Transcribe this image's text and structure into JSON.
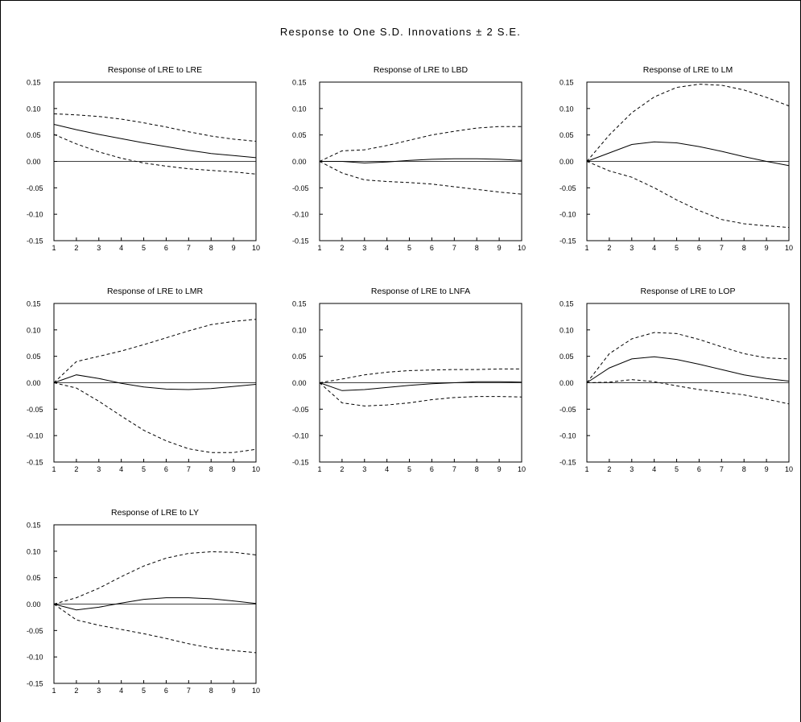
{
  "title": "Response to One S.D. Innovations ± 2 S.E.",
  "chart_data": [
    {
      "type": "line",
      "title": "Response of LRE to LRE",
      "x": [
        1,
        2,
        3,
        4,
        5,
        6,
        7,
        8,
        9,
        10
      ],
      "ylim": [
        -0.15,
        0.15
      ],
      "yticks": [
        "0.15",
        "0.10",
        "0.05",
        "0.00",
        "-0.05",
        "-0.10",
        "-0.15"
      ],
      "xticks": [
        "1",
        "2",
        "3",
        "4",
        "5",
        "6",
        "7",
        "8",
        "9",
        "10"
      ],
      "grid": false,
      "series": [
        {
          "style": "solid",
          "values": [
            0.07,
            0.06,
            0.051,
            0.043,
            0.035,
            0.028,
            0.021,
            0.015,
            0.011,
            0.007
          ]
        },
        {
          "style": "dashed",
          "values": [
            0.09,
            0.088,
            0.085,
            0.08,
            0.073,
            0.065,
            0.056,
            0.048,
            0.042,
            0.038
          ]
        },
        {
          "style": "dashed",
          "values": [
            0.051,
            0.033,
            0.018,
            0.006,
            -0.003,
            -0.009,
            -0.014,
            -0.017,
            -0.02,
            -0.024
          ]
        }
      ]
    },
    {
      "type": "line",
      "title": "Response of LRE to LBD",
      "x": [
        1,
        2,
        3,
        4,
        5,
        6,
        7,
        8,
        9,
        10
      ],
      "ylim": [
        -0.15,
        0.15
      ],
      "yticks": [
        "0.15",
        "0.10",
        "0.05",
        "0.00",
        "-0.05",
        "-0.10",
        "-0.15"
      ],
      "xticks": [
        "1",
        "2",
        "3",
        "4",
        "5",
        "6",
        "7",
        "8",
        "9",
        "10"
      ],
      "grid": false,
      "series": [
        {
          "style": "solid",
          "values": [
            0.0,
            0.0,
            -0.003,
            -0.001,
            0.002,
            0.004,
            0.005,
            0.005,
            0.004,
            0.002
          ]
        },
        {
          "style": "dashed",
          "values": [
            0.0,
            0.02,
            0.022,
            0.03,
            0.04,
            0.05,
            0.057,
            0.063,
            0.066,
            0.066
          ]
        },
        {
          "style": "dashed",
          "values": [
            0.0,
            -0.022,
            -0.035,
            -0.038,
            -0.04,
            -0.043,
            -0.048,
            -0.053,
            -0.058,
            -0.062
          ]
        }
      ]
    },
    {
      "type": "line",
      "title": "Response of LRE to LM",
      "x": [
        1,
        2,
        3,
        4,
        5,
        6,
        7,
        8,
        9,
        10
      ],
      "ylim": [
        -0.15,
        0.15
      ],
      "yticks": [
        "0.15",
        "0.10",
        "0.05",
        "0.00",
        "-0.05",
        "-0.10",
        "-0.15"
      ],
      "xticks": [
        "1",
        "2",
        "3",
        "4",
        "5",
        "6",
        "7",
        "8",
        "9",
        "10"
      ],
      "grid": false,
      "series": [
        {
          "style": "solid",
          "values": [
            0.0,
            0.016,
            0.032,
            0.037,
            0.035,
            0.028,
            0.019,
            0.009,
            0.0,
            -0.008
          ]
        },
        {
          "style": "dashed",
          "values": [
            0.0,
            0.05,
            0.092,
            0.122,
            0.14,
            0.146,
            0.144,
            0.135,
            0.121,
            0.105
          ]
        },
        {
          "style": "dashed",
          "values": [
            0.0,
            -0.018,
            -0.03,
            -0.05,
            -0.073,
            -0.093,
            -0.11,
            -0.118,
            -0.122,
            -0.125
          ]
        }
      ]
    },
    {
      "type": "line",
      "title": "Response of LRE to LMR",
      "x": [
        1,
        2,
        3,
        4,
        5,
        6,
        7,
        8,
        9,
        10
      ],
      "ylim": [
        -0.15,
        0.15
      ],
      "yticks": [
        "0.15",
        "0.10",
        "0.05",
        "0.00",
        "-0.05",
        "-0.10",
        "-0.15"
      ],
      "xticks": [
        "1",
        "2",
        "3",
        "4",
        "5",
        "6",
        "7",
        "8",
        "9",
        "10"
      ],
      "grid": false,
      "series": [
        {
          "style": "solid",
          "values": [
            0.0,
            0.015,
            0.008,
            -0.001,
            -0.008,
            -0.012,
            -0.013,
            -0.011,
            -0.007,
            -0.003
          ]
        },
        {
          "style": "dashed",
          "values": [
            0.0,
            0.04,
            0.05,
            0.06,
            0.072,
            0.085,
            0.098,
            0.11,
            0.116,
            0.12
          ]
        },
        {
          "style": "dashed",
          "values": [
            0.0,
            -0.01,
            -0.035,
            -0.063,
            -0.09,
            -0.11,
            -0.125,
            -0.132,
            -0.132,
            -0.126
          ]
        }
      ]
    },
    {
      "type": "line",
      "title": "Response of LRE to LNFA",
      "x": [
        1,
        2,
        3,
        4,
        5,
        6,
        7,
        8,
        9,
        10
      ],
      "ylim": [
        -0.15,
        0.15
      ],
      "yticks": [
        "0.15",
        "0.10",
        "0.05",
        "0.00",
        "-0.05",
        "-0.10",
        "-0.15"
      ],
      "xticks": [
        "1",
        "2",
        "3",
        "4",
        "5",
        "6",
        "7",
        "8",
        "9",
        "10"
      ],
      "grid": false,
      "series": [
        {
          "style": "solid",
          "values": [
            0.0,
            -0.015,
            -0.013,
            -0.009,
            -0.005,
            -0.002,
            0.0,
            0.002,
            0.002,
            0.001
          ]
        },
        {
          "style": "dashed",
          "values": [
            0.0,
            0.007,
            0.015,
            0.02,
            0.023,
            0.024,
            0.025,
            0.025,
            0.026,
            0.026
          ]
        },
        {
          "style": "dashed",
          "values": [
            0.0,
            -0.038,
            -0.044,
            -0.042,
            -0.038,
            -0.032,
            -0.028,
            -0.026,
            -0.026,
            -0.027
          ]
        }
      ]
    },
    {
      "type": "line",
      "title": "Response of LRE to LOP",
      "x": [
        1,
        2,
        3,
        4,
        5,
        6,
        7,
        8,
        9,
        10
      ],
      "ylim": [
        -0.15,
        0.15
      ],
      "yticks": [
        "0.15",
        "0.10",
        "0.05",
        "0.00",
        "-0.05",
        "-0.10",
        "-0.15"
      ],
      "xticks": [
        "1",
        "2",
        "3",
        "4",
        "5",
        "6",
        "7",
        "8",
        "9",
        "10"
      ],
      "grid": false,
      "series": [
        {
          "style": "solid",
          "values": [
            0.0,
            0.028,
            0.045,
            0.049,
            0.044,
            0.035,
            0.025,
            0.015,
            0.008,
            0.003
          ]
        },
        {
          "style": "dashed",
          "values": [
            0.0,
            0.055,
            0.083,
            0.095,
            0.093,
            0.082,
            0.068,
            0.055,
            0.047,
            0.045
          ]
        },
        {
          "style": "dashed",
          "values": [
            0.0,
            0.001,
            0.006,
            0.002,
            -0.006,
            -0.013,
            -0.018,
            -0.023,
            -0.031,
            -0.04
          ]
        }
      ]
    },
    {
      "type": "line",
      "title": "Response of LRE to LY",
      "x": [
        1,
        2,
        3,
        4,
        5,
        6,
        7,
        8,
        9,
        10
      ],
      "ylim": [
        -0.15,
        0.15
      ],
      "yticks": [
        "0.15",
        "0.10",
        "0.05",
        "0.00",
        "-0.05",
        "-0.10",
        "-0.15"
      ],
      "xticks": [
        "1",
        "2",
        "3",
        "4",
        "5",
        "6",
        "7",
        "8",
        "9",
        "10"
      ],
      "grid": false,
      "series": [
        {
          "style": "solid",
          "values": [
            0.0,
            -0.011,
            -0.006,
            0.002,
            0.009,
            0.012,
            0.012,
            0.01,
            0.006,
            0.001
          ]
        },
        {
          "style": "dashed",
          "values": [
            0.0,
            0.012,
            0.03,
            0.052,
            0.072,
            0.087,
            0.096,
            0.099,
            0.098,
            0.093
          ]
        },
        {
          "style": "dashed",
          "values": [
            0.0,
            -0.03,
            -0.04,
            -0.048,
            -0.056,
            -0.065,
            -0.075,
            -0.083,
            -0.088,
            -0.092
          ]
        }
      ]
    }
  ]
}
